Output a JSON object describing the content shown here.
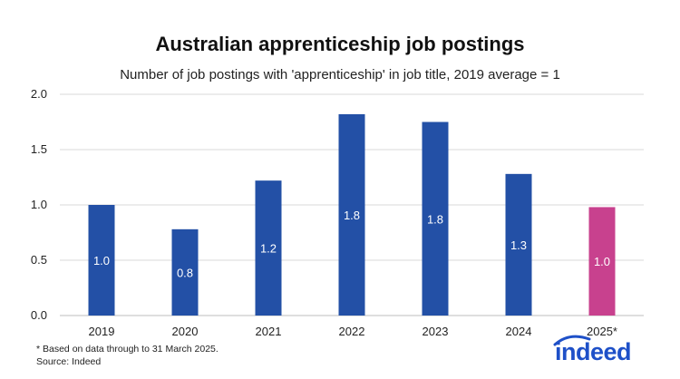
{
  "header": {
    "title": "Australian apprenticeship job postings",
    "subtitle": "Number of job postings with 'apprenticeship' in job title, 2019 average = 1"
  },
  "footer": {
    "note": "* Based on data through to 31 March 2025.",
    "source": "Source: Indeed",
    "logo_text": "indeed"
  },
  "colors": {
    "bar": "#2350a6",
    "highlight": "#c8418e",
    "grid": "#d9d9d9",
    "logo": "#1e50c8"
  },
  "chart_data": {
    "type": "bar",
    "title": "Australian apprenticeship job postings",
    "subtitle": "Number of job postings with 'apprenticeship' in job title, 2019 average = 1",
    "categories": [
      "2019",
      "2020",
      "2021",
      "2022",
      "2023",
      "2024",
      "2025*"
    ],
    "values": [
      1.0,
      0.78,
      1.22,
      1.82,
      1.75,
      1.28,
      0.98
    ],
    "labels": [
      "1.0",
      "0.8",
      "1.2",
      "1.8",
      "1.8",
      "1.3",
      "1.0"
    ],
    "highlight_index": 6,
    "ylim": [
      0,
      2.0
    ],
    "yticks": [
      "0.0",
      "0.5",
      "1.0",
      "1.5",
      "2.0"
    ],
    "ytick_values": [
      0,
      0.5,
      1.0,
      1.5,
      2.0
    ],
    "grid": true,
    "legend": "none"
  }
}
